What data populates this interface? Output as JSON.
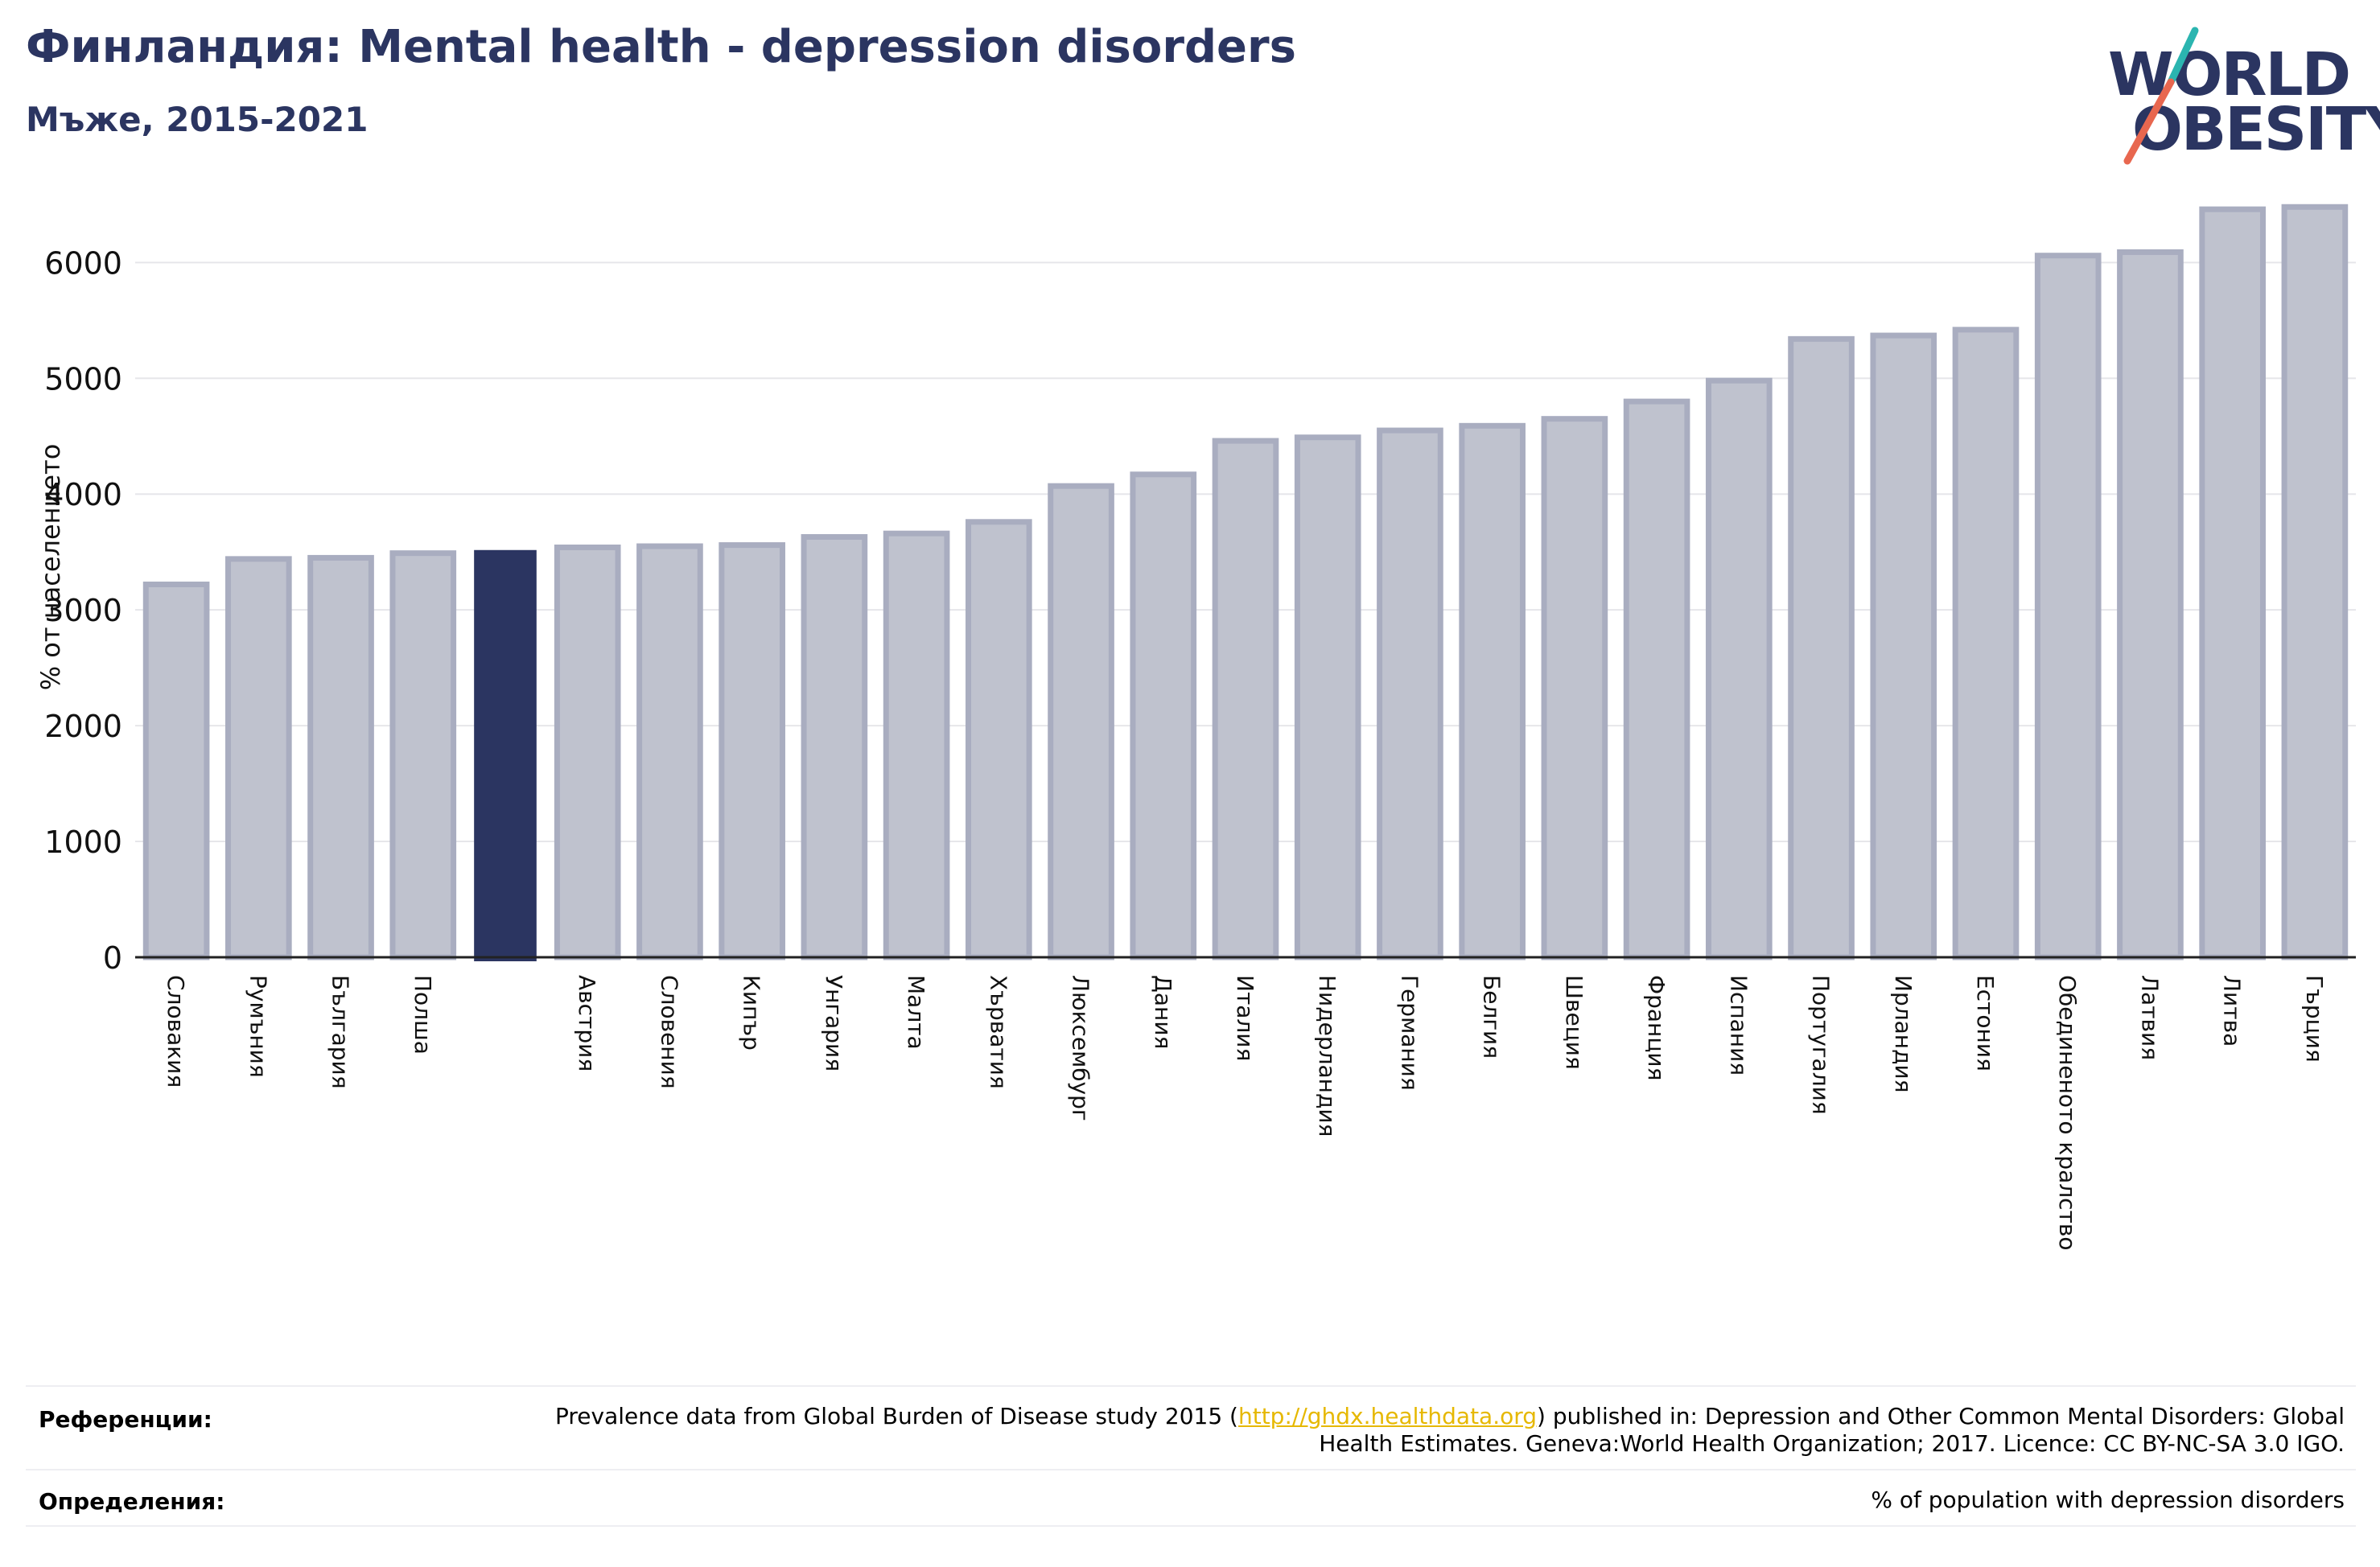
{
  "header": {
    "title": "Финландия: Mental health - depression disorders",
    "subtitle": "Мъже, 2015-2021"
  },
  "logo": {
    "line1": "WORLD",
    "line2": "OBESITY",
    "slash_colors": [
      "#2bb5b0",
      "#e8674f"
    ]
  },
  "colors": {
    "bar": "#bfc2ce",
    "bar_border": "#a9adc0",
    "highlight": "#2b3561",
    "text": "#2b3561"
  },
  "chart_data": {
    "type": "bar",
    "ylabel": "% от населението",
    "ylim": [
      0,
      6600
    ],
    "yticks": [
      0,
      1000,
      2000,
      3000,
      4000,
      5000,
      6000
    ],
    "grid": true,
    "categories": [
      "Словакия",
      "Румъния",
      "България",
      "Полша",
      "",
      "Австрия",
      "Словения",
      "Кипър",
      "Унгария",
      "Малта",
      "Хърватия",
      "Люксембург",
      "Дания",
      "Италия",
      "Нидерландия",
      "Германия",
      "Белгия",
      "Швеция",
      "Франция",
      "Испания",
      "Португалия",
      "Ирландия",
      "Естония",
      "Обединеното кралство",
      "Латвия",
      "Литва",
      "Гърция"
    ],
    "values": [
      3220,
      3440,
      3450,
      3490,
      3510,
      3540,
      3550,
      3560,
      3630,
      3660,
      3760,
      4070,
      4170,
      4460,
      4490,
      4550,
      4590,
      4650,
      4800,
      4980,
      5340,
      5370,
      5420,
      6060,
      6090,
      6460,
      6480
    ],
    "highlight_index": 4
  },
  "footer": {
    "references_label": "Референции:",
    "references_text_before": "Prevalence data from Global Burden of Disease study 2015 (",
    "references_link": "http://ghdx.healthdata.org",
    "references_text_after": ") published in: Depression and Other Common Mental Disorders: Global Health Estimates. Geneva:World Health Organization; 2017. Licence: CC BY-NC-SA 3.0 IGO.",
    "definitions_label": "Определения:",
    "definitions_text": "% of population with depression disorders"
  }
}
